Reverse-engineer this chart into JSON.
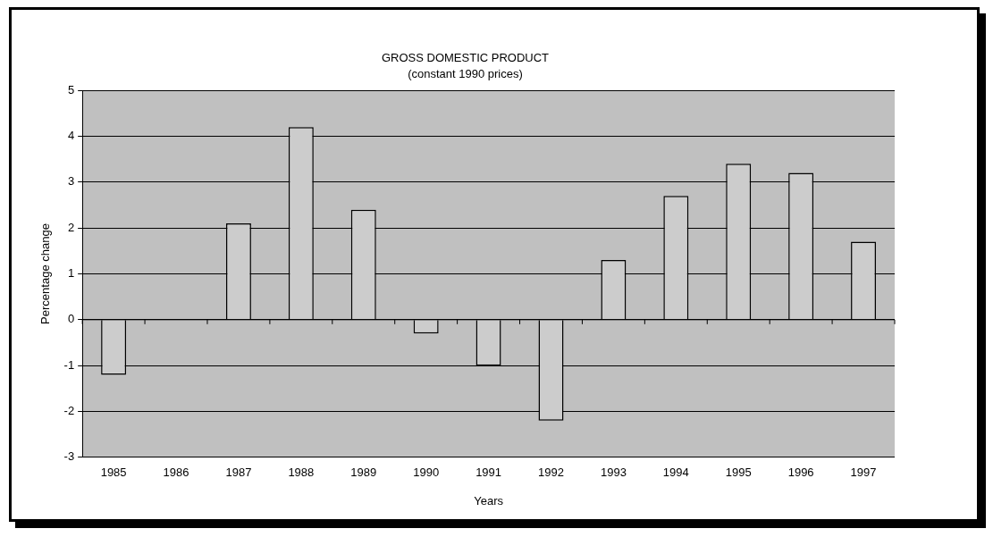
{
  "chart_data": {
    "type": "bar",
    "title": "GROSS DOMESTIC PRODUCT",
    "subtitle": "(constant 1990 prices)",
    "xlabel": "Years",
    "ylabel": "Percentage change",
    "categories": [
      "1985",
      "1986",
      "1987",
      "1988",
      "1989",
      "1990",
      "1991",
      "1992",
      "1993",
      "1994",
      "1995",
      "1996",
      "1997"
    ],
    "values": [
      -1.2,
      null,
      2.1,
      4.2,
      2.4,
      -0.3,
      -1.0,
      -2.2,
      1.3,
      2.7,
      3.4,
      3.2,
      1.7
    ],
    "color": "#cccccc",
    "ylim": [
      -3,
      5
    ],
    "yticks": [
      -3,
      -2,
      -1,
      0,
      1,
      2,
      3,
      4,
      5
    ],
    "grid": "y",
    "legend": false
  }
}
